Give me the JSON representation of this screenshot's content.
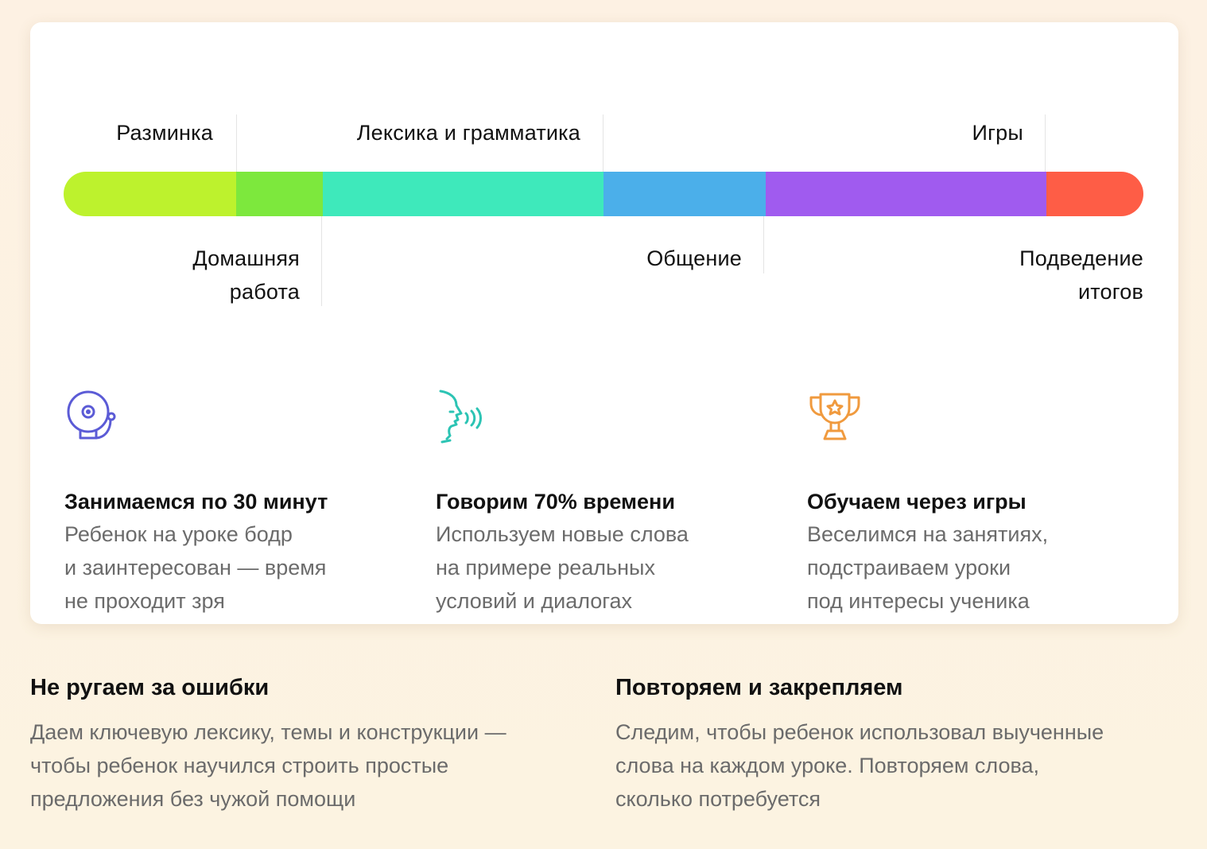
{
  "timeline": {
    "segments": [
      {
        "color": "#bdf22d",
        "share": 16
      },
      {
        "color": "#7de83d",
        "share": 8
      },
      {
        "color": "#3ee9bb",
        "share": 26
      },
      {
        "color": "#4bafea",
        "share": 15
      },
      {
        "color": "#a05bef",
        "share": 26
      },
      {
        "color": "#fe5d46",
        "share": 9
      }
    ],
    "labels": {
      "warmup": "Разминка",
      "vocab_grammar": "Лексика и грамматика",
      "games": "Игры",
      "homework_line1": "Домашняя",
      "homework_line2": "работа",
      "communication": "Общение",
      "summary_line1": "Подведение",
      "summary_line2": "итогов"
    }
  },
  "features": [
    {
      "icon": "bell-icon",
      "icon_color": "#5b5bd6",
      "title": "Занимаемся по 30 минут",
      "text": "Ребенок на уроке бодр\nи заинтересован — время\nне проходит зря"
    },
    {
      "icon": "speaking-head-icon",
      "icon_color": "#2cc4b4",
      "title": "Говорим 70% времени",
      "text": "Используем новые слова\nна примере реальных\nусловий и диалогах"
    },
    {
      "icon": "trophy-icon",
      "icon_color": "#f09a3e",
      "title": "Обучаем через игры",
      "text": "Веселимся на занятиях,\nподстраиваем уроки\nпод интересы ученика"
    }
  ],
  "bottom": [
    {
      "title": "Не ругаем за ошибки",
      "text": "Даем ключевую лексику, темы и конструкции —\nчтобы ребенок научился строить простые\nпредложения без чужой помощи"
    },
    {
      "title": "Повторяем и закрепляем",
      "text": "Следим, чтобы ребенок использовал выученные\nслова на каждом уроке. Повторяем слова,\nсколько потребуется"
    }
  ]
}
